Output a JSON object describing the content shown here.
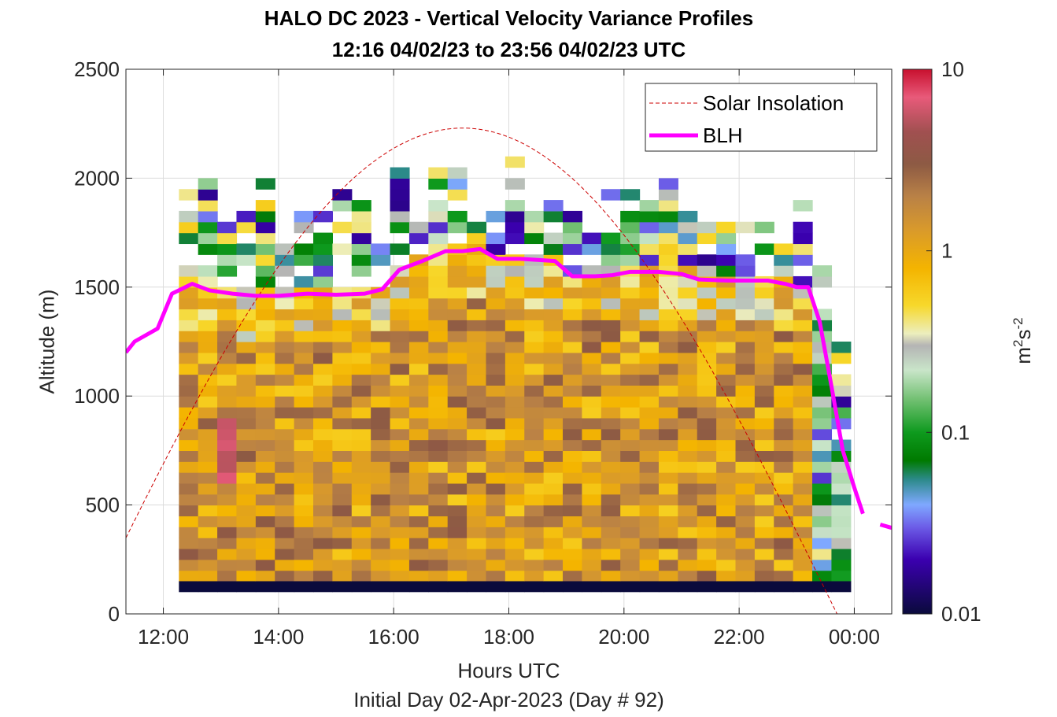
{
  "title_line1": "HALO DC 2023 - Vertical Velocity Variance Profiles",
  "title_line2": "12:16 04/02/23 to 23:56 04/02/23  UTC",
  "xlabel": "Hours UTC",
  "xlabel2": "Initial Day 02-Apr-2023 (Day # 92)",
  "ylabel": "Altitude (m)",
  "colorbar": {
    "label_base": "m",
    "label_sup1": "2",
    "label_mid": "s",
    "label_sup2": "-2",
    "scale": "log",
    "range": [
      0.01,
      10
    ],
    "tick_labels": [
      "10",
      "1",
      "0.1",
      "0.01"
    ]
  },
  "chart_data": {
    "type": "heatmap",
    "xlim": [
      11.35,
      24.65
    ],
    "ylim": [
      0,
      2500
    ],
    "grid": true,
    "x_tick_labels": [
      "12:00",
      "14:00",
      "16:00",
      "18:00",
      "20:00",
      "22:00",
      "00:00"
    ],
    "y_tick_labels": [
      "0",
      "500",
      "1000",
      "1500",
      "2000",
      "2500"
    ],
    "legend_position": "top-right",
    "legend": [
      "Solar Insolation",
      "BLH"
    ],
    "heatmap_time_range": [
      12.27,
      23.93
    ],
    "heatmap_bin_minutes": 20,
    "heatmap_altitude_bin_m": 50,
    "blh": {
      "name": "BLH",
      "color": "#ff00ff",
      "x": [
        11.35,
        11.5,
        11.9,
        12.15,
        12.5,
        12.8,
        13.2,
        13.6,
        14.0,
        14.5,
        15.0,
        15.5,
        15.8,
        16.1,
        16.5,
        16.9,
        17.2,
        17.5,
        17.8,
        18.2,
        18.8,
        19.1,
        19.5,
        19.8,
        20.1,
        20.6,
        21.0,
        21.3,
        21.8,
        22.2,
        22.5,
        22.8,
        23.0,
        23.2,
        23.4,
        23.6,
        23.8,
        24.0,
        24.15
      ],
      "y": [
        1200,
        1250,
        1310,
        1470,
        1515,
        1485,
        1470,
        1460,
        1460,
        1470,
        1465,
        1470,
        1490,
        1580,
        1620,
        1665,
        1665,
        1675,
        1630,
        1630,
        1620,
        1550,
        1550,
        1555,
        1570,
        1570,
        1560,
        1535,
        1530,
        1530,
        1530,
        1515,
        1500,
        1500,
        1340,
        1050,
        750,
        580,
        460
      ]
    },
    "blh_tail": {
      "x": [
        24.45,
        24.65
      ],
      "y": [
        410,
        395
      ]
    },
    "solar_insolation": {
      "name": "Solar Insolation",
      "color": "#cc0000",
      "peak_time": 17.2,
      "peak_altitude": 2230,
      "zero_time_start": 10.7,
      "zero_time_end": 23.7
    },
    "colorscale_stops": [
      {
        "v": 0.01,
        "color": "#0a0a3c"
      },
      {
        "v": 0.02,
        "color": "#3b00b0"
      },
      {
        "v": 0.03,
        "color": "#6c5ce7"
      },
      {
        "v": 0.04,
        "color": "#7fa8ff"
      },
      {
        "v": 0.055,
        "color": "#2c8a8a"
      },
      {
        "v": 0.07,
        "color": "#007a00"
      },
      {
        "v": 0.1,
        "color": "#0e9a1e"
      },
      {
        "v": 0.15,
        "color": "#6fbf6f"
      },
      {
        "v": 0.22,
        "color": "#c9e5c9"
      },
      {
        "v": 0.3,
        "color": "#b4b4b4"
      },
      {
        "v": 0.35,
        "color": "#eceebd"
      },
      {
        "v": 0.5,
        "color": "#f7d82b"
      },
      {
        "v": 0.8,
        "color": "#f4b400"
      },
      {
        "v": 1.3,
        "color": "#d99a2b"
      },
      {
        "v": 2.0,
        "color": "#b98146"
      },
      {
        "v": 3.0,
        "color": "#8d5a44"
      },
      {
        "v": 4.5,
        "color": "#a05050"
      },
      {
        "v": 7.0,
        "color": "#e85a7a"
      },
      {
        "v": 10.0,
        "color": "#c8102e"
      }
    ]
  }
}
